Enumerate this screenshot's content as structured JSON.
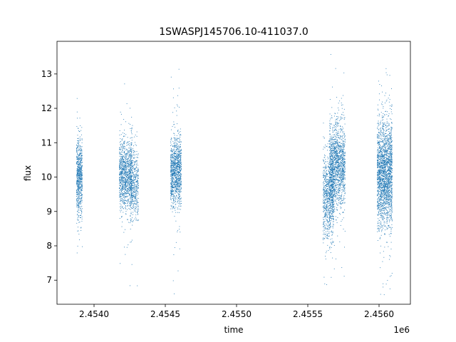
{
  "chart_data": {
    "type": "scatter",
    "title": "1SWASPJ145706.10-411037.0",
    "xlabel": "time",
    "ylabel": "flux",
    "x_offset_label": "1e6",
    "x_scale_factor": 1000000,
    "xlim": [
      2453740,
      2456220
    ],
    "ylim": [
      6.3,
      13.95
    ],
    "xticks": [
      2454000,
      2454500,
      2455000,
      2455500,
      2456000
    ],
    "xtick_labels": [
      "2.4540",
      "2.4545",
      "2.4550",
      "2.4555",
      "2.4560"
    ],
    "yticks": [
      7,
      8,
      9,
      10,
      11,
      12,
      13
    ],
    "ytick_labels": [
      "7",
      "8",
      "9",
      "10",
      "11",
      "12",
      "13"
    ],
    "grid": false,
    "point_color": "#1f77b4",
    "clusters": [
      {
        "x_start": 2453875,
        "x_end": 2453915,
        "y_center": 10.0,
        "y_spread": 0.55,
        "count": 700
      },
      {
        "x_start": 2454175,
        "x_end": 2454265,
        "y_center": 10.1,
        "y_spread": 0.5,
        "count": 1100
      },
      {
        "x_start": 2454250,
        "x_end": 2454310,
        "y_center": 9.8,
        "y_spread": 0.5,
        "count": 450
      },
      {
        "x_start": 2454535,
        "x_end": 2454610,
        "y_center": 10.15,
        "y_spread": 0.5,
        "count": 1100
      },
      {
        "x_start": 2455605,
        "x_end": 2455680,
        "y_center": 9.4,
        "y_spread": 0.6,
        "count": 800
      },
      {
        "x_start": 2455650,
        "x_end": 2455760,
        "y_center": 10.35,
        "y_spread": 0.6,
        "count": 1500
      },
      {
        "x_start": 2455985,
        "x_end": 2456090,
        "y_center": 10.1,
        "y_spread": 0.75,
        "count": 2200
      }
    ]
  }
}
